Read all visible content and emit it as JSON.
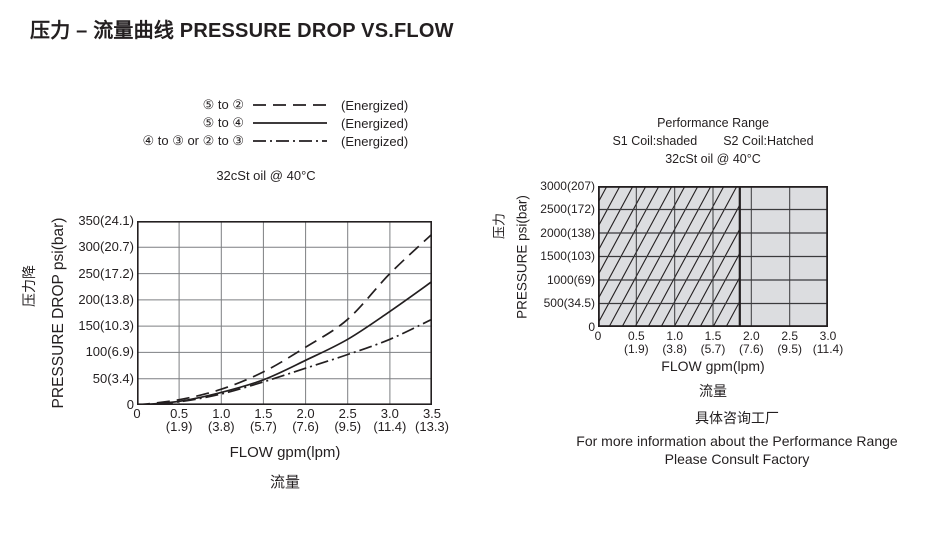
{
  "page": {
    "title": "压力 – 流量曲线 PRESSURE DROP VS.FLOW",
    "ink": "#231f20",
    "background": "#ffffff"
  },
  "style_colors": {
    "ink": "#231f20",
    "grid_gray": "#7d7f82",
    "right_grid": "#3a3a3c",
    "shade_fill": "#dcdde0"
  },
  "left_chart": {
    "legend": [
      {
        "label": "⑤ to ②",
        "line_style": "dashed",
        "note": "(Energized)"
      },
      {
        "label": "⑤ to ④",
        "line_style": "solid",
        "note": "(Energized)"
      },
      {
        "label": "④ to ③  or ② to ③",
        "line_style": "dashdot",
        "note": "(Energized)"
      }
    ],
    "condition": "32cSt  oil @ 40°C",
    "y_title_cn": "压力降",
    "y_title_en": "PRESSURE DROP psi(bar)",
    "x_title_en": "FLOW gpm(lpm)",
    "x_title_cn": "流量",
    "y_tick_labels": [
      "350(24.1)",
      "300(20.7)",
      "250(17.2)",
      "200(13.8)",
      "150(10.3)",
      "100(6.9)",
      "50(3.4)",
      "0"
    ],
    "x_tick_labels": [
      [
        "0",
        ""
      ],
      [
        "0.5",
        "(1.9)"
      ],
      [
        "1.0",
        "(3.8)"
      ],
      [
        "1.5",
        "(5.7)"
      ],
      [
        "2.0",
        "(7.6)"
      ],
      [
        "2.5",
        "(9.5)"
      ],
      [
        "3.0",
        "(11.4)"
      ],
      [
        "3.5",
        "(13.3)"
      ]
    ]
  },
  "right_chart": {
    "header_line1": "Performance Range",
    "header_s1": "S1 Coil:shaded",
    "header_s2": "S2 Coil:Hatched",
    "condition": "32cSt  oil @ 40°C",
    "y_title_cn": "压力",
    "y_title_en": "PRESSURE psi(bar)",
    "x_title_en": "FLOW gpm(lpm)",
    "x_title_cn": "流量",
    "y_tick_labels": [
      "3000(207)",
      "2500(172)",
      "2000(138)",
      "1500(103)",
      "1000(69)",
      "500(34.5)",
      "0"
    ],
    "x_tick_labels": [
      [
        "0",
        ""
      ],
      [
        "0.5",
        "(1.9)"
      ],
      [
        "1.0",
        "(3.8)"
      ],
      [
        "1.5",
        "(5.7)"
      ],
      [
        "2.0",
        "(7.6)"
      ],
      [
        "2.5",
        "(9.5)"
      ],
      [
        "3.0",
        "(11.4)"
      ]
    ],
    "footnote_cn": "具体咨询工厂",
    "footnote_en_line1": "For more information about the Performance Range",
    "footnote_en_line2": "Please Consult Factory"
  },
  "chart_data": [
    {
      "type": "line",
      "title": "PRESSURE DROP VS.FLOW",
      "subtitle": "32cSt oil @ 40°C",
      "xlabel": "FLOW gpm(lpm)",
      "ylabel": "PRESSURE DROP psi(bar)",
      "xlim": [
        0,
        3.5
      ],
      "ylim": [
        0,
        350
      ],
      "grid": true,
      "legend_position": "top",
      "x_ticks_gpm": [
        0,
        0.5,
        1.0,
        1.5,
        2.0,
        2.5,
        3.0,
        3.5
      ],
      "x_ticks_lpm": [
        null,
        1.9,
        3.8,
        5.7,
        7.6,
        9.5,
        11.4,
        13.3
      ],
      "y_ticks_psi": [
        0,
        50,
        100,
        150,
        200,
        250,
        300,
        350
      ],
      "y_ticks_bar": [
        0,
        3.4,
        6.9,
        10.3,
        13.8,
        17.2,
        20.7,
        24.1
      ],
      "series": [
        {
          "name": "⑤ to ② (Energized)",
          "style": "dashed",
          "x": [
            0,
            0.5,
            1.0,
            1.5,
            2.0,
            2.5,
            3.0,
            3.5
          ],
          "y_psi": [
            0,
            10,
            30,
            63,
            110,
            163,
            250,
            325
          ]
        },
        {
          "name": "⑤ to ④ (Energized)",
          "style": "solid",
          "x": [
            0,
            0.5,
            1.0,
            1.5,
            2.0,
            2.5,
            3.0,
            3.5
          ],
          "y_psi": [
            0,
            7,
            24,
            48,
            85,
            125,
            178,
            235
          ]
        },
        {
          "name": "④ to ③ or ② to ③ (Energized)",
          "style": "dashdot",
          "x": [
            0,
            0.5,
            1.0,
            1.5,
            2.0,
            2.5,
            3.0,
            3.5
          ],
          "y_psi": [
            0,
            6,
            21,
            44,
            70,
            96,
            125,
            163
          ]
        }
      ]
    },
    {
      "type": "area",
      "title": "Performance Range",
      "subtitle": "S1 Coil:shaded  S2 Coil:Hatched, 32cSt oil @ 40°C",
      "xlabel": "FLOW gpm(lpm)",
      "ylabel": "PRESSURE psi(bar)",
      "xlim": [
        0,
        3.0
      ],
      "ylim": [
        0,
        3000
      ],
      "grid": true,
      "x_ticks_gpm": [
        0,
        0.5,
        1.0,
        1.5,
        2.0,
        2.5,
        3.0
      ],
      "x_ticks_lpm": [
        null,
        1.9,
        3.8,
        5.7,
        7.6,
        9.5,
        11.4
      ],
      "y_ticks_psi": [
        0,
        500,
        1000,
        1500,
        2000,
        2500,
        3000
      ],
      "y_ticks_bar": [
        0,
        34.5,
        69,
        103,
        138,
        172,
        207
      ],
      "regions": [
        {
          "name": "S1 Coil",
          "fill": "shaded",
          "x_range_gpm": [
            0,
            3.0
          ],
          "y_range_psi": [
            0,
            3000
          ]
        },
        {
          "name": "S2 Coil",
          "fill": "hatched",
          "x_range_gpm": [
            0,
            1.85
          ],
          "y_range_psi": [
            0,
            3000
          ]
        }
      ]
    }
  ]
}
